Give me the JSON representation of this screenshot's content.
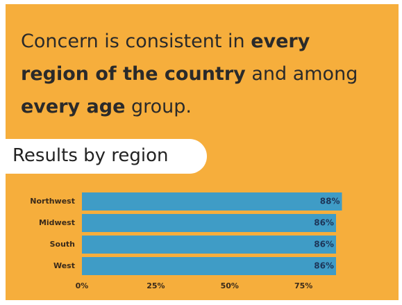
{
  "headline": [
    {
      "text": "Concern is consistent in ",
      "bold": false
    },
    {
      "text": "every region of the country",
      "bold": true
    },
    {
      "text": " and among ",
      "bold": false
    },
    {
      "text": "every age",
      "bold": true
    },
    {
      "text": " group.",
      "bold": false
    }
  ],
  "section_label": "Results by region",
  "chart_data": {
    "type": "barh",
    "categories": [
      "Northwest",
      "Midwest",
      "South",
      "West"
    ],
    "values": [
      88,
      86,
      86,
      86
    ],
    "value_labels": [
      "88%",
      "86%",
      "86%",
      "86%"
    ],
    "color": "#3f9cc6",
    "xlim": [
      0,
      90
    ],
    "xticks": [
      {
        "value": 0,
        "label": "0%"
      },
      {
        "value": 25,
        "label": "25%"
      },
      {
        "value": 50,
        "label": "50%"
      },
      {
        "value": 75,
        "label": "75%"
      }
    ],
    "grid": false
  }
}
